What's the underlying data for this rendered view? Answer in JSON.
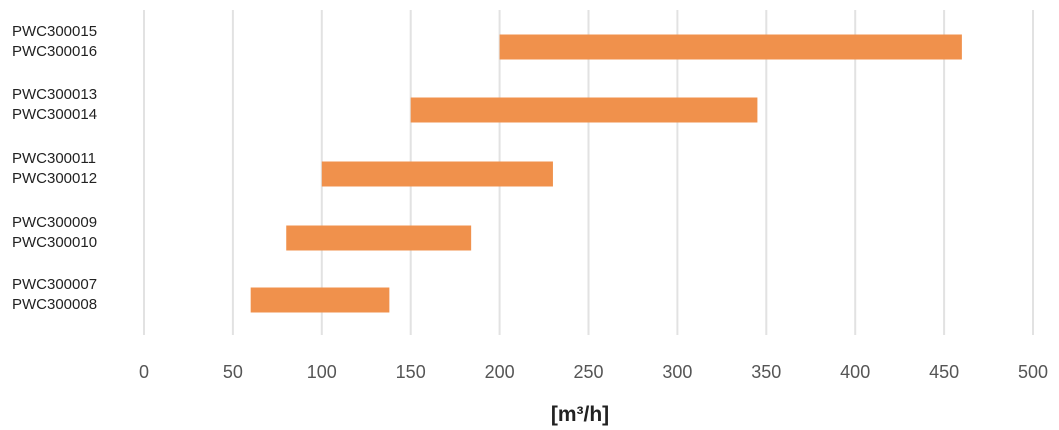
{
  "chart_data": {
    "type": "bar",
    "orientation": "horizontal",
    "floating": true,
    "title": "",
    "xlabel": "[m³/h]",
    "ylabel": "",
    "xlim": [
      0,
      500
    ],
    "xticks": [
      "0",
      "50",
      "100",
      "150",
      "200",
      "250",
      "300",
      "350",
      "400",
      "450",
      "500"
    ],
    "grid": "vertical",
    "bar_color": "#f0914c",
    "categories": [
      [
        "PWC300015",
        "PWC300016"
      ],
      [
        "PWC300013",
        "PWC300014"
      ],
      [
        "PWC300011",
        "PWC300012"
      ],
      [
        "PWC300009",
        "PWC300010"
      ],
      [
        "PWC300007",
        "PWC300008"
      ]
    ],
    "ranges": [
      [
        200,
        460
      ],
      [
        150,
        345
      ],
      [
        100,
        230
      ],
      [
        80,
        184
      ],
      [
        60,
        138
      ]
    ]
  }
}
